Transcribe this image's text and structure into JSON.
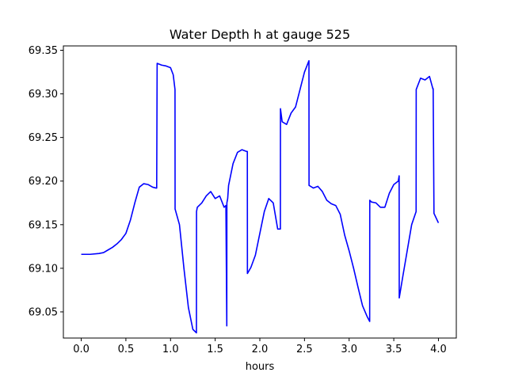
{
  "chart_data": {
    "type": "line",
    "title": "Water Depth h at gauge 525",
    "xlabel": "hours",
    "ylabel": "",
    "xlim": [
      -0.2,
      4.2
    ],
    "ylim": [
      69.02,
      69.355
    ],
    "xticks": [
      0.0,
      0.5,
      1.0,
      1.5,
      2.0,
      2.5,
      3.0,
      3.5,
      4.0
    ],
    "xtick_labels": [
      "0.0",
      "0.5",
      "1.0",
      "1.5",
      "2.0",
      "2.5",
      "3.0",
      "3.5",
      "4.0"
    ],
    "yticks": [
      69.05,
      69.1,
      69.15,
      69.2,
      69.25,
      69.3,
      69.35
    ],
    "ytick_labels": [
      "69.05",
      "69.10",
      "69.15",
      "69.20",
      "69.25",
      "69.30",
      "69.35"
    ],
    "grid": false,
    "color": "#0000ff",
    "series": [
      {
        "x": [
          0.0,
          0.1,
          0.2,
          0.25,
          0.3,
          0.35,
          0.4,
          0.45,
          0.5,
          0.55,
          0.6,
          0.65,
          0.7,
          0.75,
          0.8,
          0.84,
          0.845,
          0.85,
          0.9,
          0.95,
          1.0,
          1.03,
          1.05,
          1.051,
          1.1,
          1.15,
          1.2,
          1.25,
          1.29,
          1.291,
          1.3,
          1.35,
          1.4,
          1.45,
          1.5,
          1.55,
          1.6,
          1.62,
          1.63,
          1.631,
          1.64,
          1.65,
          1.7,
          1.75,
          1.8,
          1.85,
          1.86,
          1.861,
          1.9,
          1.95,
          2.0,
          2.05,
          2.1,
          2.15,
          2.2,
          2.23,
          2.231,
          2.25,
          2.3,
          2.35,
          2.4,
          2.45,
          2.5,
          2.55,
          2.551,
          2.6,
          2.65,
          2.7,
          2.75,
          2.8,
          2.85,
          2.9,
          2.95,
          3.0,
          3.05,
          3.1,
          3.15,
          3.2,
          3.23,
          3.231,
          3.25,
          3.3,
          3.35,
          3.4,
          3.45,
          3.5,
          3.55,
          3.56,
          3.561,
          3.6,
          3.65,
          3.7,
          3.75,
          3.751,
          3.8,
          3.85,
          3.9,
          3.94,
          3.941,
          3.95,
          4.0
        ],
        "y": [
          69.116,
          69.116,
          69.117,
          69.118,
          69.121,
          69.124,
          69.128,
          69.133,
          69.14,
          69.155,
          69.175,
          69.193,
          69.197,
          69.196,
          69.193,
          69.192,
          69.192,
          69.335,
          69.333,
          69.332,
          69.33,
          69.322,
          69.305,
          69.168,
          69.15,
          69.1,
          69.055,
          69.03,
          69.026,
          69.165,
          69.17,
          69.175,
          69.183,
          69.188,
          69.18,
          69.183,
          69.17,
          69.172,
          69.034,
          69.175,
          69.18,
          69.195,
          69.22,
          69.233,
          69.236,
          69.234,
          69.234,
          69.094,
          69.101,
          69.115,
          69.14,
          69.165,
          69.18,
          69.175,
          69.145,
          69.145,
          69.283,
          69.268,
          69.265,
          69.278,
          69.285,
          69.305,
          69.325,
          69.338,
          69.195,
          69.192,
          69.194,
          69.188,
          69.178,
          69.174,
          69.172,
          69.162,
          69.138,
          69.12,
          69.1,
          69.078,
          69.057,
          69.045,
          69.039,
          69.178,
          69.176,
          69.175,
          69.17,
          69.17,
          69.186,
          69.196,
          69.2,
          69.206,
          69.066,
          69.09,
          69.12,
          69.15,
          69.165,
          69.305,
          69.318,
          69.316,
          69.32,
          69.305,
          69.306,
          69.163,
          69.152
        ]
      }
    ]
  }
}
